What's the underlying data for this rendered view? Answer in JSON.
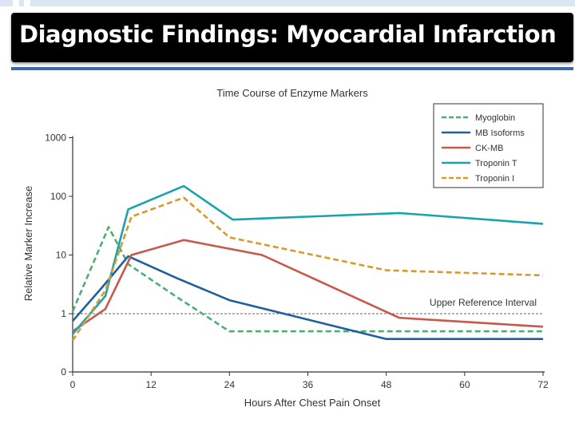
{
  "slide": {
    "title": "Diagnostic Findings: Myocardial Infarction"
  },
  "colors": {
    "title_bar": "#000000",
    "accent_line": "#3d6aa8",
    "myoglobin": "#4caf72",
    "mb_isoforms": "#1f5f9e",
    "ck_mb": "#c8594a",
    "troponin_t": "#1aa3ad",
    "troponin_i": "#d69a2d"
  },
  "chart_data": {
    "type": "line",
    "title": "Time Course of Enzyme Markers",
    "xlabel": "Hours After Chest Pain Onset",
    "ylabel": "Relative Marker Increase",
    "xlim": [
      0,
      72
    ],
    "ylim": [
      0,
      1000
    ],
    "y_scale": "log",
    "x_ticks": [
      0,
      12,
      24,
      36,
      48,
      60,
      72
    ],
    "y_ticks": [
      {
        "value": 0,
        "label": "0"
      },
      {
        "value": 1,
        "label": "1"
      },
      {
        "value": 10,
        "label": "10"
      },
      {
        "value": 100,
        "label": "100"
      },
      {
        "value": 1000,
        "label": "1000"
      }
    ],
    "reference_line": {
      "value": 1,
      "label": "Upper Reference Interval"
    },
    "legend_position": "top-right",
    "grid": false,
    "series": [
      {
        "name": "Myoglobin",
        "style": "dashed",
        "color_key": "myoglobin",
        "points": [
          [
            0,
            1.1
          ],
          [
            5.5,
            30
          ],
          [
            8.5,
            7
          ],
          [
            16,
            1.9
          ],
          [
            24,
            0.5
          ],
          [
            72,
            0.5
          ]
        ]
      },
      {
        "name": "MB Isoforms",
        "style": "solid",
        "color_key": "mb_isoforms",
        "points": [
          [
            0,
            0.75
          ],
          [
            4.5,
            2.8
          ],
          [
            8.5,
            9.5
          ],
          [
            16,
            4
          ],
          [
            24,
            1.7
          ],
          [
            48,
            0.37
          ],
          [
            72,
            0.37
          ]
        ]
      },
      {
        "name": "CK-MB",
        "style": "solid",
        "color_key": "ck_mb",
        "points": [
          [
            0,
            0.5
          ],
          [
            5,
            1.2
          ],
          [
            9,
            10
          ],
          [
            17,
            18
          ],
          [
            29,
            10
          ],
          [
            50,
            0.85
          ],
          [
            72,
            0.6
          ]
        ]
      },
      {
        "name": "Troponin T",
        "style": "solid",
        "color_key": "troponin_t",
        "points": [
          [
            0,
            0.45
          ],
          [
            5,
            2
          ],
          [
            8.5,
            60
          ],
          [
            17,
            150
          ],
          [
            24.5,
            40
          ],
          [
            50,
            52
          ],
          [
            72,
            34
          ]
        ]
      },
      {
        "name": "Troponin I",
        "style": "dashed",
        "color_key": "troponin_i",
        "points": [
          [
            0,
            0.35
          ],
          [
            5,
            2.5
          ],
          [
            9,
            45
          ],
          [
            17,
            95
          ],
          [
            24,
            20
          ],
          [
            48,
            5.5
          ],
          [
            72,
            4.5
          ]
        ]
      }
    ]
  }
}
